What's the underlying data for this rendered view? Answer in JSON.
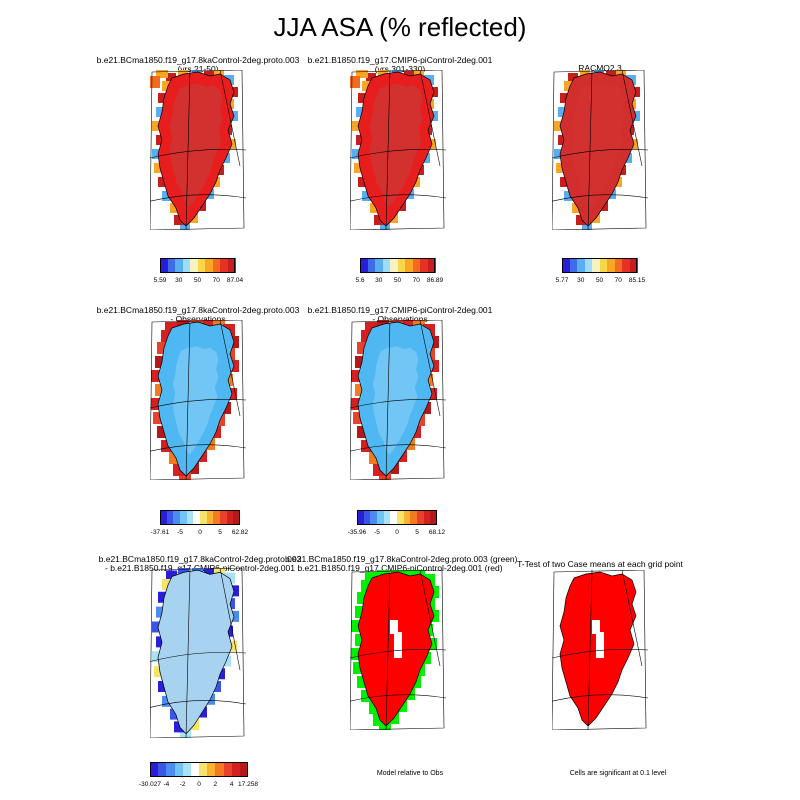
{
  "title": "JJA ASA (% reflected)",
  "palette_abs": [
    "#2a1fd8",
    "#3f6dea",
    "#58aef1",
    "#9fdcf7",
    "#f6f3c2",
    "#f9d54a",
    "#f9a526",
    "#f26b1e",
    "#e63224",
    "#c81d1d"
  ],
  "palette_diff": [
    "#2a1fd8",
    "#3a55e6",
    "#4c8cf0",
    "#6fc4f5",
    "#a8e2f7",
    "#ffffff",
    "#f8e36a",
    "#f9b330",
    "#f47a22",
    "#e8432a",
    "#d42020",
    "#b51818"
  ],
  "panels": [
    {
      "id": "p1",
      "title": [
        "b.e21.BCma1850.f19_g17.8kaControl-2deg.proto.003",
        "(yrs 21-50)"
      ],
      "style": "abs",
      "bar": "abs",
      "ticks": [
        "5.59",
        "30",
        "50",
        "70",
        "87.04"
      ]
    },
    {
      "id": "p2",
      "title": [
        "b.e21.B1850.f19_g17.CMIP6-piControl-2deg.001",
        "(yrs 301-330)"
      ],
      "style": "abs",
      "bar": "abs",
      "ticks": [
        "5.6",
        "30",
        "50",
        "70",
        "86.89"
      ]
    },
    {
      "id": "p3",
      "title": [
        "RACMO2.3"
      ],
      "style": "racmo",
      "bar": "abs",
      "ticks": [
        "5.77",
        "30",
        "50",
        "70",
        "85.15"
      ]
    },
    {
      "id": "p4",
      "title": [
        "b.e21.BCma1850.f19_g17.8kaControl-2deg.proto.003",
        "- Observations"
      ],
      "style": "diffobs",
      "bar": "diff",
      "ticks": [
        "-37.61",
        "-5",
        "0",
        "5",
        "62.82"
      ]
    },
    {
      "id": "p5",
      "title": [
        "b.e21.B1850.f19_g17.CMIP6-piControl-2deg.001",
        "- Observations"
      ],
      "style": "diffobs",
      "bar": "diff",
      "ticks": [
        "-35.96",
        "-5",
        "0",
        "5",
        "68.12"
      ]
    },
    {
      "id": "p7",
      "title": [
        "b.e21.BCma1850.f19_g17.8kaControl-2deg.proto.003",
        "- b.e21.B1850.f19_g17.CMIP6-piControl-2deg.001"
      ],
      "style": "diffmodel",
      "bar": "diff",
      "ticks": [
        "-30.027",
        "-4",
        "-2",
        "0",
        "2",
        "4",
        "17.258"
      ]
    },
    {
      "id": "p8",
      "title": [
        "b.e21.BCma1850.f19_g17.8kaControl-2deg.proto.003 (green)",
        "b.e21.B1850.f19_g17.CMIP6-piControl-2deg.001 (red)"
      ],
      "style": "greenred",
      "note": "Model relative to Obs"
    },
    {
      "id": "p9",
      "title": [
        "T-Test of two Case means at each grid point"
      ],
      "style": "ttest",
      "note": "Cells are significant at 0.1 level"
    }
  ]
}
